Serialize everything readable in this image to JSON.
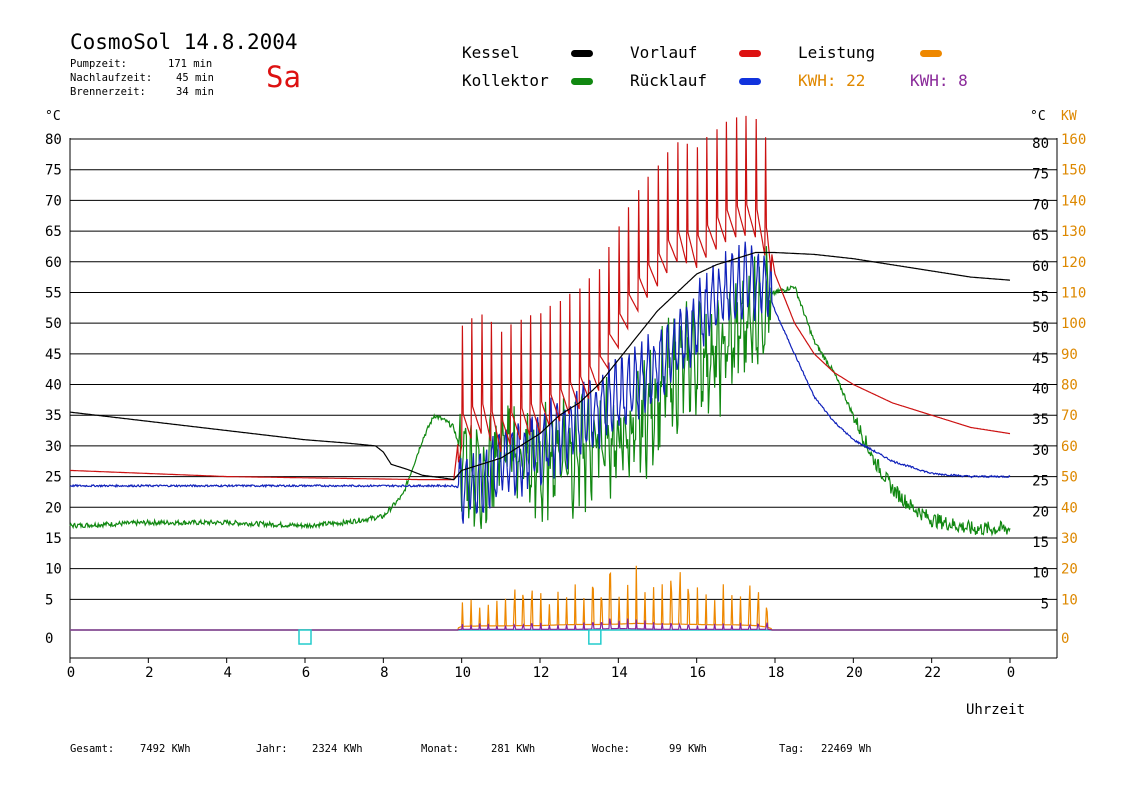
{
  "header": {
    "title": "CosmoSol 14.8.2004",
    "pumpzeit_label": "Pumpzeit:",
    "pumpzeit_value": "171 min",
    "nachlauf_label": "Nachlaufzeit:",
    "nachlauf_value": "45 min",
    "brenner_label": "Brennerzeit:",
    "brenner_value": "34 min",
    "day": "Sa"
  },
  "legend": {
    "kessel": "Kessel",
    "vorlauf": "Vorlauf",
    "leistung": "Leistung",
    "kollektor": "Kollektor",
    "ruecklauf": "Rücklauf",
    "kwh1": "KWH: 22",
    "kwh2": "KWH: 8"
  },
  "units": {
    "left": "°C",
    "right_c": "°C",
    "right_kw": "KW"
  },
  "xlabel": "Uhrzeit",
  "footer": {
    "gesamt_label": "Gesamt:",
    "gesamt_value": "7492 KWh",
    "jahr_label": "Jahr:",
    "jahr_value": "2324 KWh",
    "monat_label": "Monat:",
    "monat_value": "281 KWh",
    "woche_label": "Woche:",
    "woche_value": "99 KWh",
    "tag_label": "Tag:",
    "tag_value": "22469 Wh"
  },
  "colors": {
    "kessel": "#000000",
    "vorlauf": "#cc1111",
    "ruecklauf": "#1122bb",
    "kollektor": "#118811",
    "leistung": "#ee8800",
    "kwh2": "#882299",
    "baseline": "#22cccc",
    "right_axis": "#dd8800"
  },
  "chart_data": {
    "type": "line",
    "x_ticks": [
      "0",
      "2",
      "4",
      "6",
      "8",
      "10",
      "12",
      "14",
      "16",
      "18",
      "20",
      "22",
      "0"
    ],
    "y_left_ticks": [
      "0",
      "5",
      "10",
      "15",
      "20",
      "25",
      "30",
      "35",
      "40",
      "45",
      "50",
      "55",
      "60",
      "65",
      "70",
      "75",
      "80"
    ],
    "y_right_c_ticks": [
      "5",
      "10",
      "15",
      "20",
      "25",
      "30",
      "35",
      "40",
      "45",
      "50",
      "55",
      "60",
      "65",
      "70",
      "75",
      "80"
    ],
    "y_right_kw_ticks": [
      "0",
      "10",
      "20",
      "30",
      "40",
      "50",
      "60",
      "70",
      "80",
      "90",
      "100",
      "110",
      "120",
      "130",
      "140",
      "150",
      "160"
    ],
    "xlim": [
      0,
      24
    ],
    "ylim": [
      0,
      80
    ],
    "grid": true,
    "series": [
      {
        "name": "Kessel",
        "x": [
          0,
          2,
          4,
          6,
          7,
          7.8,
          8,
          8.2,
          8.6,
          9,
          9.5,
          9.8,
          10,
          10.5,
          11,
          11.5,
          12,
          12.5,
          13,
          13.5,
          14,
          14.5,
          15,
          15.5,
          16,
          16.5,
          17,
          17.5,
          18,
          19,
          20,
          21,
          22,
          23,
          24
        ],
        "y": [
          35.5,
          34,
          32.5,
          31,
          30.5,
          30,
          29,
          27,
          26.2,
          25.2,
          24.8,
          24.5,
          26,
          27,
          28,
          30,
          32,
          35,
          37,
          40,
          44,
          48,
          52,
          55,
          58,
          59.5,
          60.5,
          61.5,
          61.5,
          61.2,
          60.5,
          59.5,
          58.5,
          57.5,
          57
        ]
      },
      {
        "name": "Vorlauf",
        "x": [
          0,
          2,
          4,
          6,
          8,
          9,
          9.8,
          10,
          10.5,
          11,
          11.5,
          12,
          12.5,
          13,
          13.5,
          14,
          14.5,
          15,
          15.5,
          16,
          16.5,
          17,
          17.5,
          17.8,
          18,
          18.5,
          19,
          19.5,
          20,
          21,
          22,
          23,
          24
        ],
        "y": [
          26,
          25.5,
          25,
          24.8,
          24.6,
          24.5,
          24.5,
          36,
          38,
          35,
          37,
          38,
          40,
          42,
          45,
          52,
          58,
          62,
          66,
          65,
          68,
          70,
          70,
          66,
          58,
          50,
          45,
          42,
          40,
          37,
          35,
          33,
          32
        ]
      },
      {
        "name": "Rücklauf",
        "x": [
          0,
          2,
          4,
          6,
          8,
          9,
          9.8,
          10,
          10.5,
          11,
          11.5,
          12,
          12.5,
          13,
          13.5,
          14,
          14.5,
          15,
          15.5,
          16,
          16.5,
          17,
          17.5,
          17.8,
          18,
          18.5,
          19,
          19.5,
          20,
          21,
          22,
          23,
          24
        ],
        "y": [
          23.5,
          23.5,
          23.5,
          23.5,
          23.5,
          23.5,
          23.5,
          23,
          24,
          27,
          28,
          30,
          32,
          34,
          36,
          38,
          40,
          43,
          46,
          50,
          54,
          56,
          57,
          56,
          52,
          45,
          38,
          34,
          31,
          27.5,
          25.5,
          25,
          25
        ]
      },
      {
        "name": "Kollektor",
        "x": [
          0,
          2,
          4,
          6,
          7,
          8,
          8.5,
          9,
          9.3,
          9.6,
          9.8,
          10,
          10.5,
          11,
          11.5,
          12,
          12.5,
          13,
          13.5,
          14,
          14.5,
          15,
          15.5,
          16,
          16.5,
          17,
          17.5,
          18,
          18.5,
          19,
          19.5,
          20,
          20.5,
          21,
          21.5,
          22,
          23,
          24
        ],
        "y": [
          17,
          17.5,
          17.5,
          17,
          17.5,
          18.5,
          22,
          31,
          35,
          34,
          33,
          28,
          25,
          30,
          28,
          26,
          30,
          28,
          32,
          30,
          33,
          38,
          42,
          45,
          44,
          48,
          52,
          55,
          56,
          47,
          42,
          35,
          28,
          23,
          20,
          18,
          16.5,
          16.5
        ]
      },
      {
        "name": "Leistung",
        "unit": "KW",
        "x": [
          0,
          9.8,
          10,
          10.5,
          11,
          11.5,
          12,
          12.5,
          13,
          13.5,
          14,
          14.5,
          15,
          15.5,
          16,
          16.5,
          17,
          17.5,
          17.8,
          18,
          24
        ],
        "y": [
          0,
          0,
          10,
          11,
          11,
          12,
          12,
          14,
          15,
          15,
          16,
          18,
          16,
          16,
          15,
          14,
          14,
          12,
          8,
          0,
          0
        ]
      },
      {
        "name": "KWH: 8",
        "unit": "KW",
        "x": [
          0,
          9.8,
          10,
          11,
          12,
          13,
          13.5,
          14,
          14.5,
          15,
          16,
          17,
          17.8,
          18,
          24
        ],
        "y": [
          0,
          0,
          2,
          2,
          2,
          2,
          3,
          4,
          3,
          2,
          2,
          2,
          2,
          0,
          0
        ]
      }
    ],
    "markers": [
      {
        "x": 6,
        "y": 0
      },
      {
        "x": 13.4,
        "y": 0
      }
    ]
  }
}
